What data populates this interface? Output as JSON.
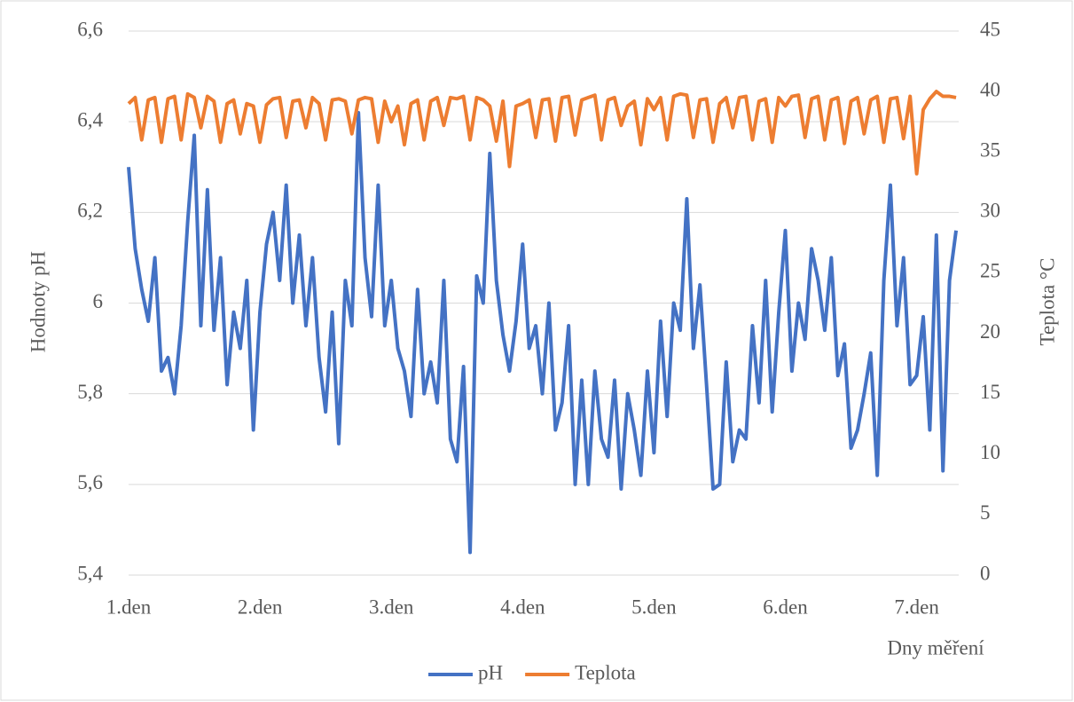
{
  "chart_data": {
    "type": "line",
    "xlabel": "Dny měření",
    "ylabel": "Hodnoty pH",
    "y2label": "Teplota °C",
    "x": [
      1.0,
      1.05,
      1.1,
      1.15,
      1.2,
      1.25,
      1.3,
      1.35,
      1.4,
      1.45,
      1.5,
      1.55,
      1.6,
      1.65,
      1.7,
      1.75,
      1.8,
      1.85,
      1.9,
      1.95,
      2.0,
      2.05,
      2.1,
      2.15,
      2.2,
      2.25,
      2.3,
      2.35,
      2.4,
      2.45,
      2.5,
      2.55,
      2.6,
      2.65,
      2.7,
      2.75,
      2.8,
      2.85,
      2.9,
      2.95,
      3.0,
      3.05,
      3.1,
      3.15,
      3.2,
      3.25,
      3.3,
      3.35,
      3.4,
      3.45,
      3.5,
      3.55,
      3.6,
      3.65,
      3.7,
      3.75,
      3.8,
      3.85,
      3.9,
      3.95,
      4.0,
      4.05,
      4.1,
      4.15,
      4.2,
      4.25,
      4.3,
      4.35,
      4.4,
      4.45,
      4.5,
      4.55,
      4.6,
      4.65,
      4.7,
      4.75,
      4.8,
      4.85,
      4.9,
      4.95,
      5.0,
      5.05,
      5.1,
      5.15,
      5.2,
      5.25,
      5.3,
      5.35,
      5.4,
      5.45,
      5.5,
      5.55,
      5.6,
      5.65,
      5.7,
      5.75,
      5.8,
      5.85,
      5.9,
      5.95,
      6.0,
      6.05,
      6.1,
      6.15,
      6.2,
      6.25,
      6.3,
      6.35,
      6.4,
      6.45,
      6.5,
      6.55,
      6.6,
      6.65,
      6.7,
      6.75,
      6.8,
      6.85,
      6.9,
      6.95,
      7.0,
      7.05,
      7.1,
      7.15,
      7.2,
      7.25,
      7.3
    ],
    "series": [
      {
        "name": "pH",
        "color": "#4472c4",
        "values": [
          6.3,
          6.12,
          6.03,
          5.96,
          6.1,
          5.85,
          5.88,
          5.8,
          5.95,
          6.18,
          6.37,
          5.95,
          6.25,
          5.94,
          6.1,
          5.82,
          5.98,
          5.9,
          6.05,
          5.72,
          5.98,
          6.13,
          6.2,
          6.05,
          6.26,
          6.0,
          6.15,
          5.95,
          6.1,
          5.88,
          5.76,
          5.98,
          5.69,
          6.05,
          5.95,
          6.42,
          6.1,
          5.97,
          6.26,
          5.95,
          6.05,
          5.9,
          5.85,
          5.75,
          6.03,
          5.8,
          5.87,
          5.78,
          6.05,
          5.7,
          5.65,
          5.86,
          5.45,
          6.06,
          6.0,
          6.33,
          6.05,
          5.93,
          5.85,
          5.96,
          6.13,
          5.9,
          5.95,
          5.8,
          6.0,
          5.72,
          5.78,
          5.95,
          5.6,
          5.83,
          5.6,
          5.85,
          5.7,
          5.66,
          5.83,
          5.59,
          5.8,
          5.72,
          5.62,
          5.85,
          5.67,
          5.96,
          5.75,
          6.0,
          5.94,
          6.23,
          5.9,
          6.04,
          5.82,
          5.59,
          5.6,
          5.87,
          5.65,
          5.72,
          5.7,
          5.95,
          5.78,
          6.05,
          5.76,
          5.98,
          6.16,
          5.85,
          6.0,
          5.92,
          6.12,
          6.05,
          5.94,
          6.1,
          5.84,
          5.91,
          5.68,
          5.72,
          5.8,
          5.89,
          5.62,
          6.05,
          6.26,
          5.95,
          6.1,
          5.82,
          5.84,
          5.97,
          5.72,
          6.15,
          5.63,
          6.05,
          6.16
        ]
      },
      {
        "name": "Teplota",
        "color": "#ed7d31",
        "axis": "y2",
        "values": [
          39,
          39.5,
          36,
          39.3,
          39.5,
          35.8,
          39.4,
          39.6,
          36,
          39.8,
          39.5,
          37,
          39.6,
          39.2,
          35.8,
          39,
          39.3,
          36.5,
          39,
          38.8,
          35.8,
          38.9,
          39.4,
          39.5,
          36.2,
          39.2,
          39.3,
          37,
          39.5,
          39,
          36,
          39.3,
          39.4,
          39.2,
          36.5,
          39.3,
          39.5,
          39.4,
          35.8,
          39.2,
          37.5,
          38.8,
          35.6,
          39,
          39.3,
          36,
          39.2,
          39.5,
          37.2,
          39.5,
          39.4,
          39.6,
          36,
          39.5,
          39.3,
          38.8,
          35.9,
          39.2,
          33.8,
          38.8,
          39,
          39.3,
          36.2,
          39.3,
          39.4,
          35.9,
          39.5,
          39.6,
          36.4,
          39.3,
          39.5,
          39.7,
          36,
          39.3,
          39.5,
          37.2,
          38.8,
          39.2,
          35.6,
          39.4,
          38.5,
          39.5,
          36,
          39.6,
          39.8,
          39.7,
          36.2,
          39.3,
          39.4,
          35.8,
          39,
          39.5,
          37,
          39.5,
          39.6,
          36,
          39.2,
          39.4,
          35.8,
          39.5,
          38.8,
          39.6,
          39.7,
          36.2,
          39.4,
          39.6,
          36,
          39.3,
          39.5,
          35.7,
          39.2,
          39.5,
          36.5,
          39.3,
          39.6,
          35.8,
          39.4,
          39.5,
          36.1,
          39.6,
          33.2,
          38.5,
          39.4,
          40,
          39.6,
          39.6,
          39.5
        ]
      }
    ],
    "xlim": [
      1,
      7.32
    ],
    "xticks": [
      {
        "value": 1,
        "label": "1.den"
      },
      {
        "value": 2,
        "label": "2.den"
      },
      {
        "value": 3,
        "label": "3.den"
      },
      {
        "value": 4,
        "label": "4.den"
      },
      {
        "value": 5,
        "label": "5.den"
      },
      {
        "value": 6,
        "label": "6.den"
      },
      {
        "value": 7,
        "label": "7.den"
      }
    ],
    "ylim": [
      5.4,
      6.6
    ],
    "yticks": [
      {
        "value": 5.4,
        "label": "5,4"
      },
      {
        "value": 5.6,
        "label": "5,6"
      },
      {
        "value": 5.8,
        "label": "5,8"
      },
      6,
      {
        "value": 6.2,
        "label": "6,2"
      },
      {
        "value": 6.4,
        "label": "6,4"
      },
      {
        "value": 6.6,
        "label": "6,6"
      }
    ],
    "y2lim": [
      0,
      45
    ],
    "y2ticks": [
      0,
      5,
      10,
      15,
      20,
      25,
      30,
      35,
      40,
      45
    ],
    "grid": true,
    "legend": "bottom"
  }
}
